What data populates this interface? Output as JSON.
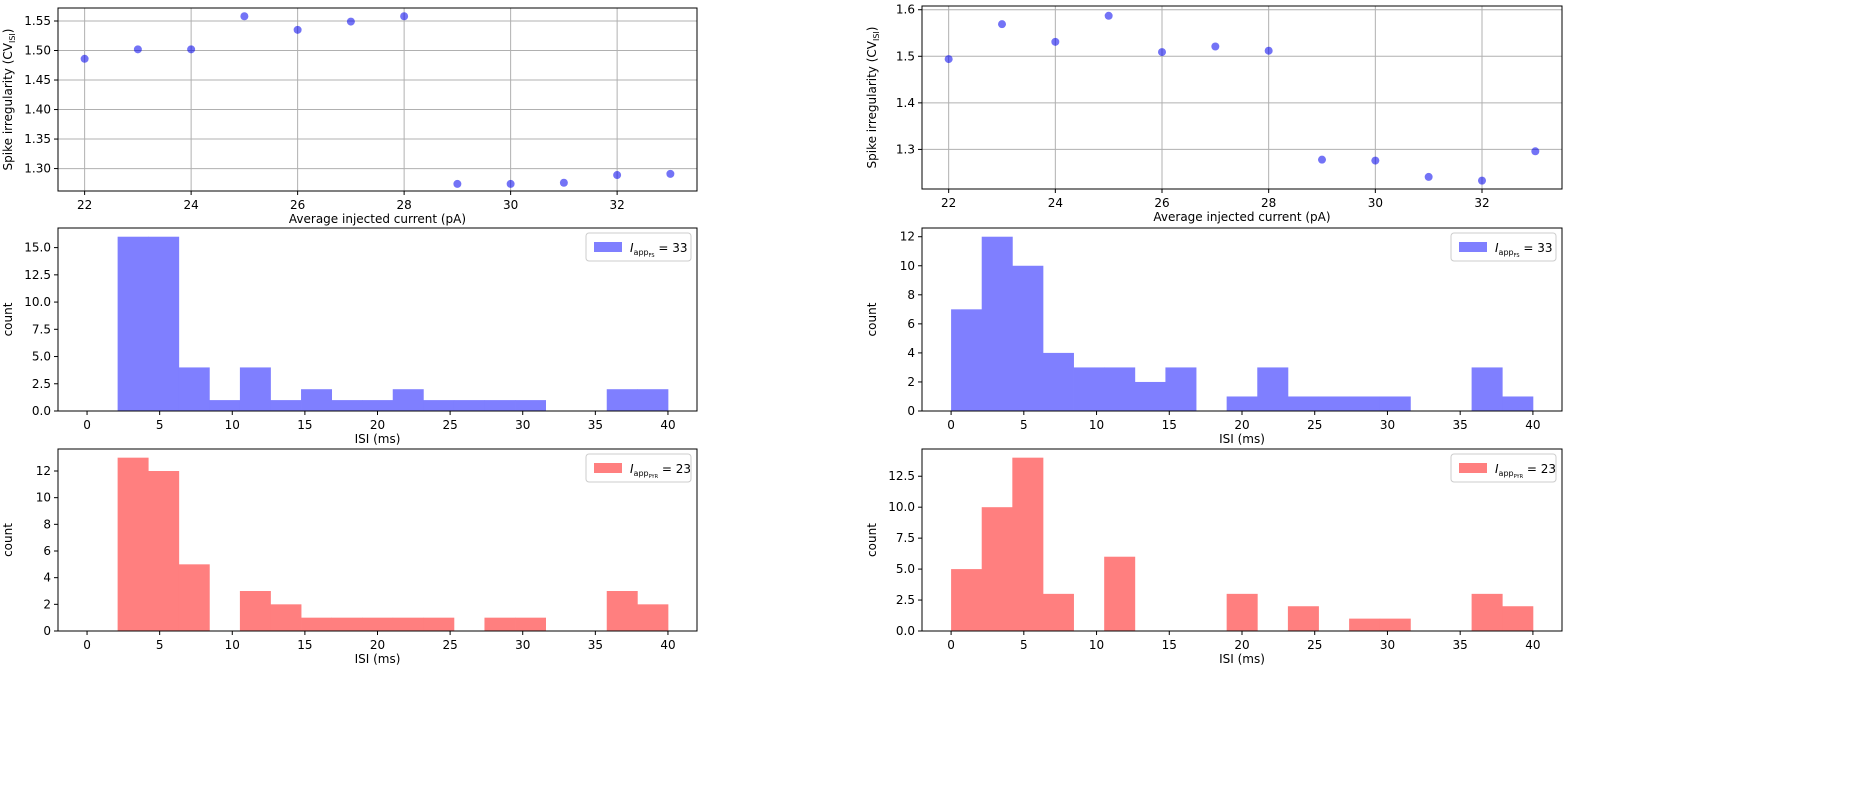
{
  "chart_data": [
    {
      "type": "scatter",
      "xlabel": "Average injected current (pA)",
      "ylabel": "Spike irregularity (CV",
      "ylabel_sub": "ISI",
      "ylabel_close": ")",
      "x": [
        22,
        23,
        24,
        25,
        26,
        27,
        28,
        29,
        30,
        31,
        32,
        33
      ],
      "y": [
        1.486,
        1.502,
        1.502,
        1.558,
        1.535,
        1.549,
        1.558,
        1.274,
        1.274,
        1.276,
        1.289,
        1.291
      ],
      "xlim": [
        21.5,
        33.5
      ],
      "ylim": [
        1.262,
        1.572
      ],
      "xticks": [
        22,
        24,
        26,
        28,
        30,
        32
      ],
      "yticks": [
        1.3,
        1.35,
        1.4,
        1.45,
        1.5,
        1.55
      ],
      "ytick_labels": [
        "1.30",
        "1.35",
        "1.40",
        "1.45",
        "1.50",
        "1.55"
      ],
      "grid": true,
      "color": "#0000ee"
    },
    {
      "type": "scatter",
      "xlabel": "Average injected current (pA)",
      "ylabel": "Spike irregularity (CV",
      "ylabel_sub": "ISI",
      "ylabel_close": ")",
      "x": [
        22,
        23,
        24,
        25,
        26,
        27,
        28,
        29,
        30,
        31,
        32,
        33
      ],
      "y": [
        1.494,
        1.569,
        1.531,
        1.587,
        1.509,
        1.521,
        1.512,
        1.278,
        1.276,
        1.241,
        1.233,
        1.296
      ],
      "xlim": [
        21.5,
        33.5
      ],
      "ylim": [
        1.215,
        1.608
      ],
      "xticks": [
        22,
        24,
        26,
        28,
        30,
        32
      ],
      "yticks": [
        1.3,
        1.4,
        1.5,
        1.6
      ],
      "ytick_labels": [
        "1.3",
        "1.4",
        "1.5",
        "1.6"
      ],
      "grid": true,
      "color": "#0000ee"
    },
    {
      "type": "histogram",
      "xlabel": "ISI (ms)",
      "ylabel": "count",
      "bin_edges": [
        0,
        2.105,
        4.21,
        6.315,
        8.42,
        10.525,
        12.63,
        14.735,
        16.84,
        18.945,
        21.05,
        23.155,
        25.26,
        27.365,
        29.47,
        31.575,
        33.68,
        35.785,
        37.89,
        40
      ],
      "counts": [
        0,
        16,
        16,
        4,
        1,
        4,
        1,
        2,
        1,
        1,
        2,
        1,
        1,
        1,
        1,
        0,
        0,
        2,
        2
      ],
      "xlim": [
        -2,
        42
      ],
      "ylim": [
        0,
        16.8
      ],
      "xticks": [
        0,
        5,
        10,
        15,
        20,
        25,
        30,
        35,
        40
      ],
      "yticks": [
        0,
        2.5,
        5,
        7.5,
        10,
        12.5,
        15
      ],
      "ytick_labels": [
        "0.0",
        "2.5",
        "5.0",
        "7.5",
        "10.0",
        "12.5",
        "15.0"
      ],
      "legend": {
        "prefix": "I",
        "sub": "app",
        "subsub": "FS",
        "suffix": " = 33"
      },
      "color": "#7f7fff"
    },
    {
      "type": "histogram",
      "xlabel": "ISI (ms)",
      "ylabel": "count",
      "bin_edges": [
        0,
        2.105,
        4.21,
        6.315,
        8.42,
        10.525,
        12.63,
        14.735,
        16.84,
        18.945,
        21.05,
        23.155,
        25.26,
        27.365,
        29.47,
        31.575,
        33.68,
        35.785,
        37.89,
        40
      ],
      "counts": [
        7,
        12,
        10,
        4,
        3,
        3,
        2,
        3,
        0,
        1,
        3,
        1,
        1,
        1,
        1,
        0,
        0,
        3,
        1
      ],
      "xlim": [
        -2,
        42
      ],
      "ylim": [
        0,
        12.6
      ],
      "xticks": [
        0,
        5,
        10,
        15,
        20,
        25,
        30,
        35,
        40
      ],
      "yticks": [
        0,
        2,
        4,
        6,
        8,
        10,
        12
      ],
      "ytick_labels": [
        "0",
        "2",
        "4",
        "6",
        "8",
        "10",
        "12"
      ],
      "legend": {
        "prefix": "I",
        "sub": "app",
        "subsub": "FS",
        "suffix": " = 33"
      },
      "color": "#7f7fff"
    },
    {
      "type": "histogram",
      "xlabel": "ISI (ms)",
      "ylabel": "count",
      "bin_edges": [
        0,
        2.105,
        4.21,
        6.315,
        8.42,
        10.525,
        12.63,
        14.735,
        16.84,
        18.945,
        21.05,
        23.155,
        25.26,
        27.365,
        29.47,
        31.575,
        33.68,
        35.785,
        37.89,
        40
      ],
      "counts": [
        0,
        13,
        12,
        5,
        0,
        3,
        2,
        1,
        1,
        1,
        1,
        1,
        0,
        1,
        1,
        0,
        0,
        3,
        2
      ],
      "xlim": [
        -2,
        42
      ],
      "ylim": [
        0,
        13.65
      ],
      "xticks": [
        0,
        5,
        10,
        15,
        20,
        25,
        30,
        35,
        40
      ],
      "yticks": [
        0,
        2,
        4,
        6,
        8,
        10,
        12
      ],
      "ytick_labels": [
        "0",
        "2",
        "4",
        "6",
        "8",
        "10",
        "12"
      ],
      "legend": {
        "prefix": "I",
        "sub": "app",
        "subsub": "PYR",
        "suffix": " = 23"
      },
      "color": "#ff7f7f"
    },
    {
      "type": "histogram",
      "xlabel": "ISI (ms)",
      "ylabel": "count",
      "bin_edges": [
        0,
        2.105,
        4.21,
        6.315,
        8.42,
        10.525,
        12.63,
        14.735,
        16.84,
        18.945,
        21.05,
        23.155,
        25.26,
        27.365,
        29.47,
        31.575,
        33.68,
        35.785,
        37.89,
        40
      ],
      "counts": [
        5,
        10,
        14,
        3,
        0,
        6,
        0,
        0,
        0,
        3,
        0,
        2,
        0,
        1,
        1,
        0,
        0,
        3,
        2
      ],
      "xlim": [
        -2,
        42
      ],
      "ylim": [
        0,
        14.7
      ],
      "xticks": [
        0,
        5,
        10,
        15,
        20,
        25,
        30,
        35,
        40
      ],
      "yticks": [
        0,
        2.5,
        5,
        7.5,
        10,
        12.5
      ],
      "ytick_labels": [
        "0.0",
        "2.5",
        "5.0",
        "7.5",
        "10.0",
        "12.5"
      ],
      "legend": {
        "prefix": "I",
        "sub": "app",
        "subsub": "PYR",
        "suffix": " = 23"
      },
      "color": "#ff7f7f"
    }
  ]
}
